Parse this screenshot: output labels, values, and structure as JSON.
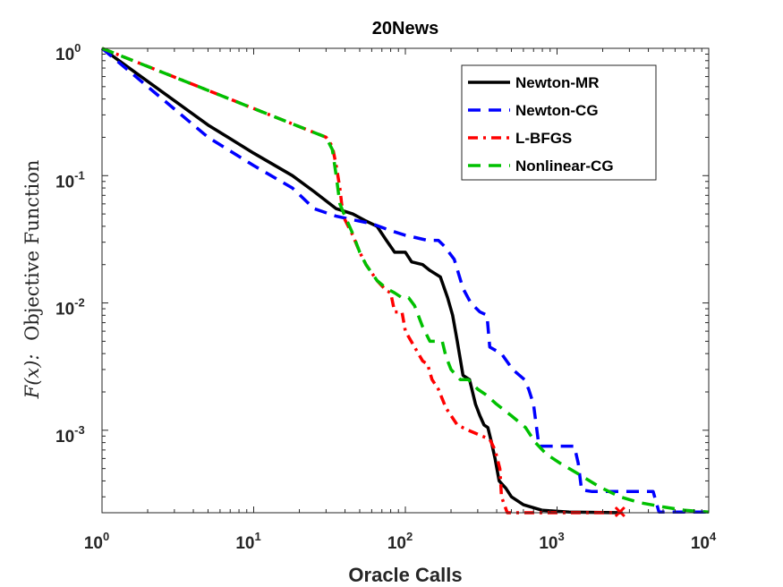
{
  "chart_data": {
    "type": "line",
    "title": "20News",
    "xlabel": "Oracle Calls",
    "ylabel": "F(x): Objective Function",
    "ylabel_parts": {
      "math": "F(x):",
      "text": "Objective Function"
    },
    "xscale": "log",
    "yscale": "log",
    "xlim": [
      1,
      10000
    ],
    "ylim": [
      0.000225,
      1
    ],
    "xticks": [
      {
        "value": 1,
        "base": "10",
        "exp": "0"
      },
      {
        "value": 10,
        "base": "10",
        "exp": "1"
      },
      {
        "value": 100,
        "base": "10",
        "exp": "2"
      },
      {
        "value": 1000,
        "base": "10",
        "exp": "3"
      },
      {
        "value": 10000,
        "base": "10",
        "exp": "4"
      }
    ],
    "yticks": [
      {
        "value": 1,
        "base": "10",
        "exp": "0"
      },
      {
        "value": 0.1,
        "base": "10",
        "exp": "-1"
      },
      {
        "value": 0.01,
        "base": "10",
        "exp": "-2"
      },
      {
        "value": 0.001,
        "base": "10",
        "exp": "-3"
      }
    ],
    "legend_position": "top-right",
    "series": [
      {
        "name": "Newton-MR",
        "color": "#000000",
        "dash": "solid",
        "points": [
          [
            1,
            1
          ],
          [
            2,
            0.55
          ],
          [
            5,
            0.25
          ],
          [
            10,
            0.15
          ],
          [
            18,
            0.1
          ],
          [
            25,
            0.075
          ],
          [
            35,
            0.055
          ],
          [
            45,
            0.05
          ],
          [
            55,
            0.044
          ],
          [
            65,
            0.04
          ],
          [
            75,
            0.031
          ],
          [
            85,
            0.025
          ],
          [
            100,
            0.025
          ],
          [
            110,
            0.021
          ],
          [
            130,
            0.02
          ],
          [
            145,
            0.018
          ],
          [
            170,
            0.016
          ],
          [
            190,
            0.011
          ],
          [
            205,
            0.008
          ],
          [
            220,
            0.005
          ],
          [
            240,
            0.0027
          ],
          [
            265,
            0.0025
          ],
          [
            290,
            0.0016
          ],
          [
            310,
            0.0013
          ],
          [
            330,
            0.0011
          ],
          [
            350,
            0.00105
          ],
          [
            370,
            0.0008
          ],
          [
            390,
            0.0006
          ],
          [
            415,
            0.0004
          ],
          [
            460,
            0.00035
          ],
          [
            500,
            0.0003
          ],
          [
            600,
            0.00026
          ],
          [
            800,
            0.000235
          ],
          [
            1200,
            0.000228
          ],
          [
            2700,
            0.000225
          ]
        ]
      },
      {
        "name": "Newton-CG",
        "color": "#0000ff",
        "dash": "dashed",
        "points": [
          [
            1,
            1
          ],
          [
            2,
            0.5
          ],
          [
            5,
            0.2
          ],
          [
            10,
            0.12
          ],
          [
            18,
            0.08
          ],
          [
            25,
            0.055
          ],
          [
            35,
            0.048
          ],
          [
            45,
            0.045
          ],
          [
            60,
            0.042
          ],
          [
            80,
            0.037
          ],
          [
            100,
            0.034
          ],
          [
            140,
            0.031
          ],
          [
            165,
            0.031
          ],
          [
            180,
            0.028
          ],
          [
            210,
            0.022
          ],
          [
            240,
            0.013
          ],
          [
            270,
            0.01
          ],
          [
            310,
            0.0085
          ],
          [
            345,
            0.008
          ],
          [
            360,
            0.0045
          ],
          [
            430,
            0.004
          ],
          [
            510,
            0.003
          ],
          [
            610,
            0.0025
          ],
          [
            650,
            0.0021
          ],
          [
            700,
            0.0016
          ],
          [
            760,
            0.00075
          ],
          [
            1300,
            0.00075
          ],
          [
            1380,
            0.00055
          ],
          [
            1450,
            0.00034
          ],
          [
            1700,
            0.00033
          ],
          [
            4300,
            0.00033
          ],
          [
            4700,
            0.000228
          ],
          [
            10000,
            0.000228
          ]
        ]
      },
      {
        "name": "L-BFGS",
        "color": "#ff0000",
        "dash": "dashdot",
        "points": [
          [
            1,
            1
          ],
          [
            30,
            0.2
          ],
          [
            33,
            0.17
          ],
          [
            35,
            0.12
          ],
          [
            37,
            0.08
          ],
          [
            38,
            0.06
          ],
          [
            40,
            0.045
          ],
          [
            45,
            0.034
          ],
          [
            50,
            0.025
          ],
          [
            55,
            0.02
          ],
          [
            65,
            0.015
          ],
          [
            75,
            0.0125
          ],
          [
            80,
            0.012
          ],
          [
            85,
            0.0085
          ],
          [
            95,
            0.0085
          ],
          [
            100,
            0.006
          ],
          [
            130,
            0.0035
          ],
          [
            140,
            0.0033
          ],
          [
            150,
            0.0025
          ],
          [
            165,
            0.0021
          ],
          [
            185,
            0.0015
          ],
          [
            220,
            0.0011
          ],
          [
            260,
            0.001
          ],
          [
            320,
            0.0009
          ],
          [
            360,
            0.00085
          ],
          [
            390,
            0.0007
          ],
          [
            420,
            0.0005
          ],
          [
            430,
            0.0003
          ],
          [
            470,
            0.000225
          ],
          [
            1000,
            0.000225
          ],
          [
            2600,
            0.000225
          ]
        ],
        "marker": {
          "x": 2600,
          "y": 0.000225,
          "symbol": "x"
        }
      },
      {
        "name": "Nonlinear-CG",
        "color": "#00c000",
        "dash": "dashed",
        "points": [
          [
            1,
            1
          ],
          [
            30,
            0.2
          ],
          [
            33,
            0.16
          ],
          [
            35,
            0.1
          ],
          [
            37,
            0.06
          ],
          [
            40,
            0.048
          ],
          [
            45,
            0.035
          ],
          [
            50,
            0.025
          ],
          [
            55,
            0.02
          ],
          [
            65,
            0.015
          ],
          [
            75,
            0.013
          ],
          [
            85,
            0.012
          ],
          [
            95,
            0.011
          ],
          [
            105,
            0.011
          ],
          [
            115,
            0.0095
          ],
          [
            130,
            0.0065
          ],
          [
            145,
            0.005
          ],
          [
            175,
            0.005
          ],
          [
            185,
            0.0038
          ],
          [
            200,
            0.003
          ],
          [
            230,
            0.0025
          ],
          [
            260,
            0.0025
          ],
          [
            300,
            0.0021
          ],
          [
            340,
            0.0019
          ],
          [
            400,
            0.0016
          ],
          [
            500,
            0.0013
          ],
          [
            620,
            0.00105
          ],
          [
            720,
            0.0008
          ],
          [
            850,
            0.00065
          ],
          [
            1050,
            0.00055
          ],
          [
            1400,
            0.00045
          ],
          [
            1900,
            0.00036
          ],
          [
            2600,
            0.0003
          ],
          [
            3500,
            0.00027
          ],
          [
            5000,
            0.00025
          ],
          [
            7000,
            0.000235
          ],
          [
            10000,
            0.000228
          ]
        ]
      }
    ]
  }
}
